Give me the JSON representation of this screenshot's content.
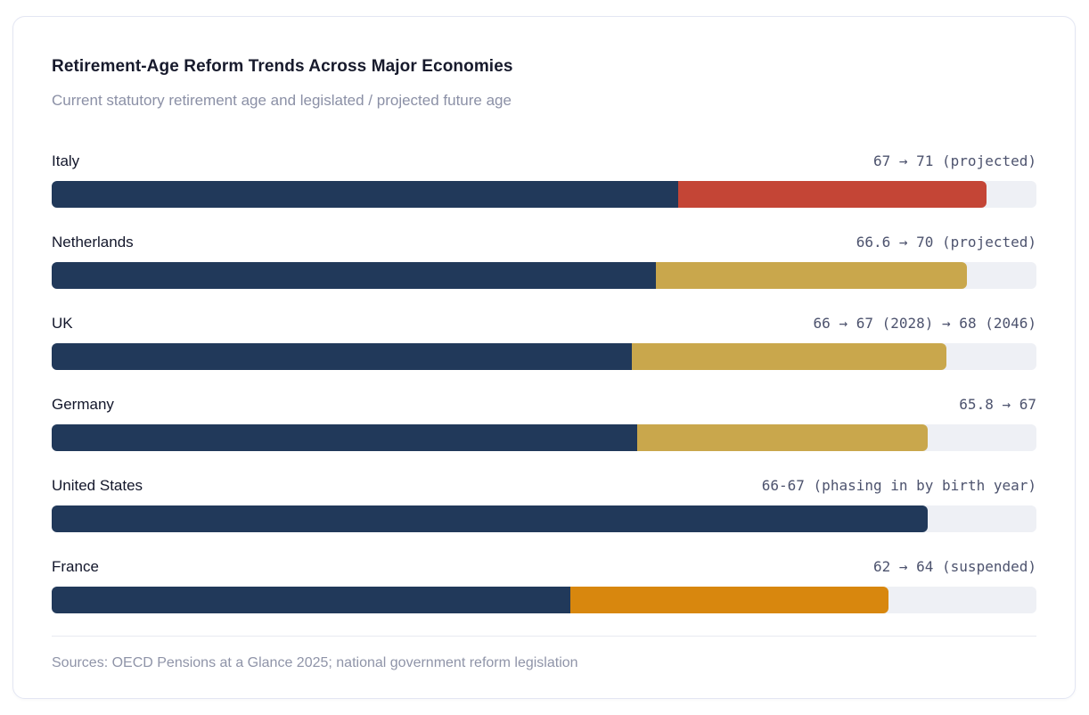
{
  "header": {
    "title": "Retirement-Age Reform Trends Across Major Economies",
    "subtitle": "Current statutory retirement age and legislated / projected future age"
  },
  "footer": {
    "sources": "Sources: OECD Pensions at a Glance 2025; national government reform legislation"
  },
  "colors": {
    "current_bar": "#21395a",
    "projected_red": "#c44536",
    "legislated_gold": "#c9a74c",
    "suspended_orange": "#d8870e",
    "track": "#eef0f5",
    "annotation_text": "#4d536e",
    "title_text": "#171a2c",
    "muted_text": "#8b90a6"
  },
  "chart_data": {
    "type": "bar",
    "orientation": "horizontal",
    "title": "Retirement-Age Reform Trends Across Major Economies",
    "subtitle": "Current statutory retirement age and legislated / projected future age",
    "legend": "none",
    "axes": "none (annotated bars, right-aligned value labels)",
    "rows": [
      {
        "country": "Italy",
        "current_age": 67,
        "future_age": 71,
        "annotation": "67 → 71 (projected)",
        "status": "projected",
        "future_color": "#c44536",
        "current_pct": 63.6,
        "future_end_pct": 94.9
      },
      {
        "country": "Netherlands",
        "current_age": 66.6,
        "future_age": 70,
        "annotation": "66.6 → 70 (projected)",
        "status": "projected",
        "future_color": "#c9a74c",
        "current_pct": 61.4,
        "future_end_pct": 92.9
      },
      {
        "country": "UK",
        "current_age": 66,
        "future_age": 68,
        "annotation": "66 → 67 (2028) → 68 (2046)",
        "status": "legislated",
        "future_color": "#c9a74c",
        "current_pct": 58.9,
        "future_end_pct": 90.9
      },
      {
        "country": "Germany",
        "current_age": 65.8,
        "future_age": 67,
        "annotation": "65.8 → 67",
        "status": "legislated",
        "future_color": "#c9a74c",
        "current_pct": 59.5,
        "future_end_pct": 89.0
      },
      {
        "country": "United States",
        "current_age": "66-67",
        "future_age": null,
        "annotation": "66-67 (phasing in by birth year)",
        "status": "phasing in",
        "future_color": null,
        "current_pct": 89.0,
        "future_end_pct": null
      },
      {
        "country": "France",
        "current_age": 62,
        "future_age": 64,
        "annotation": "62 → 64 (suspended)",
        "status": "suspended",
        "future_color": "#d8870e",
        "current_pct": 52.7,
        "future_end_pct": 85.0
      }
    ]
  }
}
